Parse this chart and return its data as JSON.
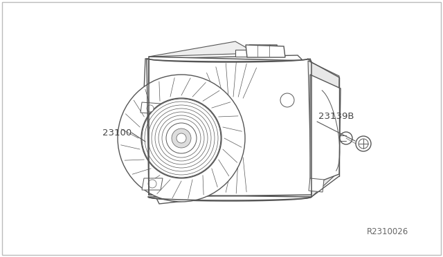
{
  "background_color": "#ffffff",
  "line_color": "#555555",
  "label_color": "#444444",
  "fig_width": 6.4,
  "fig_height": 3.72,
  "dpi": 100,
  "label_23100": "23100",
  "label_23139B": "23139B",
  "label_ref": "R2310026"
}
